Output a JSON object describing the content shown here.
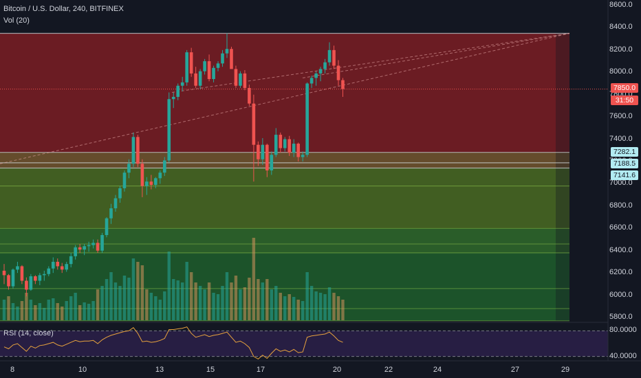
{
  "header": {
    "title": "Bitcoin / U.S. Dollar, 240, BITFINEX",
    "volume_label": "Vol (20)",
    "rsi_label": "RSI (14, close)"
  },
  "price_axis": [
    "8600.0",
    "8400.0",
    "8200.0",
    "8000.0",
    "7800.0",
    "7600.0",
    "7400.0",
    "7200.0",
    "7000.0",
    "6800.0",
    "6600.0",
    "6400.0",
    "6200.0",
    "6000.0",
    "5800.0"
  ],
  "rsi_axis": [
    "80.0000",
    "40.0000"
  ],
  "date_axis": [
    "8",
    "10",
    "13",
    "15",
    "17",
    "20",
    "22",
    "24",
    "27",
    "29"
  ],
  "tags": {
    "last_price": "7850.0",
    "countdown": "31:50",
    "level_1": "7282.1",
    "level_2": "7188.5",
    "level_3": "7141.6"
  },
  "colors": {
    "background": "#131722",
    "up": "#26a69a",
    "down": "#ef5350",
    "zone_red": "#8a1f24",
    "zone_orange": "#7a5a2f",
    "zone_green": "#4a6b22",
    "zone_green_dark": "#1f5e2b",
    "rsi_band": "#2a1f47",
    "rsi_line": "#e8a33d",
    "tag_teal": "#b2ebf2",
    "tag_red": "#ef5350"
  },
  "chart_data": {
    "type": "candlestick",
    "symbol": "Bitcoin / U.S. Dollar",
    "interval": "240",
    "exchange": "BITFINEX",
    "ylim": [
      5750,
      8700
    ],
    "price_levels": [
      8350,
      7282.1,
      7188.5,
      7141.6,
      6980,
      6600,
      6460,
      6380,
      6060,
      5880,
      5770
    ],
    "candles": [
      [
        6220,
        6280,
        6100,
        6180
      ],
      [
        6180,
        6190,
        6050,
        6080
      ],
      [
        6080,
        6240,
        6060,
        6230
      ],
      [
        6230,
        6300,
        6200,
        6260
      ],
      [
        6260,
        6270,
        6100,
        6130
      ],
      [
        6130,
        6160,
        5990,
        6050
      ],
      [
        6050,
        6190,
        6040,
        6170
      ],
      [
        6170,
        6180,
        6100,
        6130
      ],
      [
        6130,
        6200,
        6090,
        6180
      ],
      [
        6180,
        6220,
        6130,
        6190
      ],
      [
        6190,
        6260,
        6170,
        6240
      ],
      [
        6240,
        6340,
        6200,
        6300
      ],
      [
        6300,
        6330,
        6230,
        6260
      ],
      [
        6260,
        6290,
        6200,
        6230
      ],
      [
        6230,
        6300,
        6210,
        6280
      ],
      [
        6280,
        6380,
        6250,
        6350
      ],
      [
        6350,
        6450,
        6320,
        6430
      ],
      [
        6430,
        6460,
        6380,
        6410
      ],
      [
        6410,
        6460,
        6360,
        6440
      ],
      [
        6440,
        6480,
        6390,
        6450
      ],
      [
        6450,
        6500,
        6420,
        6470
      ],
      [
        6470,
        6500,
        6380,
        6400
      ],
      [
        6400,
        6560,
        6380,
        6540
      ],
      [
        6540,
        6700,
        6520,
        6690
      ],
      [
        6690,
        6820,
        6640,
        6780
      ],
      [
        6780,
        6900,
        6750,
        6870
      ],
      [
        6870,
        6980,
        6830,
        6960
      ],
      [
        6960,
        7120,
        6930,
        7100
      ],
      [
        7100,
        7220,
        7050,
        7180
      ],
      [
        7180,
        7460,
        7150,
        7420
      ],
      [
        7420,
        7440,
        7150,
        7180
      ],
      [
        7180,
        7220,
        6880,
        6980
      ],
      [
        6980,
        7060,
        6900,
        7020
      ],
      [
        7020,
        7080,
        6950,
        6990
      ],
      [
        6990,
        7060,
        6960,
        7050
      ],
      [
        7050,
        7120,
        7000,
        7100
      ],
      [
        7100,
        7240,
        7070,
        7210
      ],
      [
        7210,
        7820,
        7190,
        7760
      ],
      [
        7760,
        7820,
        7680,
        7780
      ],
      [
        7780,
        7900,
        7750,
        7880
      ],
      [
        7880,
        7960,
        7830,
        7910
      ],
      [
        7910,
        8200,
        7880,
        8180
      ],
      [
        8180,
        8220,
        7960,
        7990
      ],
      [
        7990,
        8050,
        7860,
        7880
      ],
      [
        7880,
        8030,
        7850,
        8010
      ],
      [
        8010,
        8120,
        7980,
        8100
      ],
      [
        8100,
        8160,
        7920,
        7940
      ],
      [
        7940,
        8060,
        7910,
        8040
      ],
      [
        8040,
        8100,
        8010,
        8080
      ],
      [
        8080,
        8200,
        8050,
        8170
      ],
      [
        8170,
        8350,
        8130,
        8210
      ],
      [
        8210,
        8230,
        8040,
        8030
      ],
      [
        8030,
        8060,
        7860,
        7880
      ],
      [
        7880,
        8010,
        7860,
        7990
      ],
      [
        7990,
        8020,
        7840,
        7860
      ],
      [
        7860,
        7890,
        7700,
        7720
      ],
      [
        7720,
        7800,
        7020,
        7350
      ],
      [
        7350,
        7380,
        7160,
        7220
      ],
      [
        7220,
        7410,
        7170,
        7350
      ],
      [
        7350,
        7360,
        7060,
        7120
      ],
      [
        7120,
        7290,
        7080,
        7260
      ],
      [
        7260,
        7500,
        7240,
        7440
      ],
      [
        7440,
        7460,
        7280,
        7320
      ],
      [
        7320,
        7420,
        7290,
        7400
      ],
      [
        7400,
        7430,
        7250,
        7280
      ],
      [
        7280,
        7400,
        7240,
        7360
      ],
      [
        7360,
        7370,
        7200,
        7240
      ],
      [
        7240,
        7290,
        7200,
        7260
      ],
      [
        7260,
        7910,
        7240,
        7900
      ],
      [
        7900,
        7970,
        7860,
        7950
      ],
      [
        7950,
        8010,
        7880,
        7990
      ],
      [
        7990,
        8050,
        7920,
        8030
      ],
      [
        8030,
        8120,
        7990,
        8090
      ],
      [
        8090,
        8270,
        8060,
        8200
      ],
      [
        8200,
        8240,
        8030,
        8060
      ],
      [
        8060,
        8110,
        7880,
        7930
      ],
      [
        7930,
        7950,
        7780,
        7850
      ]
    ],
    "volume": [
      [
        0.3,
        1
      ],
      [
        0.35,
        0
      ],
      [
        0.25,
        1
      ],
      [
        0.2,
        1
      ],
      [
        0.28,
        0
      ],
      [
        0.4,
        0
      ],
      [
        0.3,
        1
      ],
      [
        0.22,
        0
      ],
      [
        0.25,
        1
      ],
      [
        0.18,
        1
      ],
      [
        0.3,
        1
      ],
      [
        0.32,
        1
      ],
      [
        0.25,
        0
      ],
      [
        0.2,
        0
      ],
      [
        0.28,
        1
      ],
      [
        0.35,
        1
      ],
      [
        0.4,
        1
      ],
      [
        0.22,
        0
      ],
      [
        0.26,
        1
      ],
      [
        0.24,
        1
      ],
      [
        0.28,
        1
      ],
      [
        0.45,
        0
      ],
      [
        0.5,
        1
      ],
      [
        0.6,
        1
      ],
      [
        0.7,
        1
      ],
      [
        0.55,
        1
      ],
      [
        0.5,
        1
      ],
      [
        0.65,
        1
      ],
      [
        0.62,
        1
      ],
      [
        0.9,
        1
      ],
      [
        0.85,
        0
      ],
      [
        0.8,
        0
      ],
      [
        0.45,
        0
      ],
      [
        0.4,
        1
      ],
      [
        0.35,
        1
      ],
      [
        0.3,
        1
      ],
      [
        0.42,
        1
      ],
      [
        1.0,
        1
      ],
      [
        0.6,
        1
      ],
      [
        0.58,
        1
      ],
      [
        0.55,
        1
      ],
      [
        0.85,
        1
      ],
      [
        0.7,
        0
      ],
      [
        0.55,
        0
      ],
      [
        0.5,
        1
      ],
      [
        0.45,
        1
      ],
      [
        0.55,
        0
      ],
      [
        0.4,
        1
      ],
      [
        0.38,
        1
      ],
      [
        0.5,
        1
      ],
      [
        0.7,
        1
      ],
      [
        0.55,
        0
      ],
      [
        0.65,
        0
      ],
      [
        0.45,
        1
      ],
      [
        0.48,
        0
      ],
      [
        0.62,
        0
      ],
      [
        1.2,
        0
      ],
      [
        0.6,
        0
      ],
      [
        0.55,
        1
      ],
      [
        0.6,
        0
      ],
      [
        0.45,
        1
      ],
      [
        0.5,
        1
      ],
      [
        0.4,
        0
      ],
      [
        0.35,
        1
      ],
      [
        0.38,
        0
      ],
      [
        0.34,
        1
      ],
      [
        0.3,
        0
      ],
      [
        0.28,
        1
      ],
      [
        0.7,
        1
      ],
      [
        0.5,
        1
      ],
      [
        0.42,
        1
      ],
      [
        0.4,
        1
      ],
      [
        0.38,
        1
      ],
      [
        0.48,
        1
      ],
      [
        0.4,
        0
      ],
      [
        0.35,
        0
      ],
      [
        0.3,
        0
      ]
    ],
    "rsi": {
      "ylim": [
        30,
        90
      ],
      "bands": [
        80,
        40
      ],
      "values": [
        55,
        52,
        58,
        60,
        54,
        48,
        56,
        53,
        57,
        58,
        60,
        62,
        58,
        56,
        59,
        62,
        65,
        63,
        64,
        64,
        65,
        60,
        66,
        70,
        73,
        75,
        77,
        79,
        80,
        85,
        76,
        63,
        64,
        62,
        63,
        65,
        68,
        82,
        82,
        83,
        84,
        86,
        76,
        70,
        72,
        74,
        71,
        73,
        74,
        76,
        78,
        70,
        62,
        64,
        60,
        54,
        40,
        36,
        42,
        37,
        45,
        52,
        48,
        50,
        47,
        51,
        46,
        47,
        70,
        72,
        73,
        74,
        75,
        78,
        72,
        65,
        62
      ]
    }
  }
}
